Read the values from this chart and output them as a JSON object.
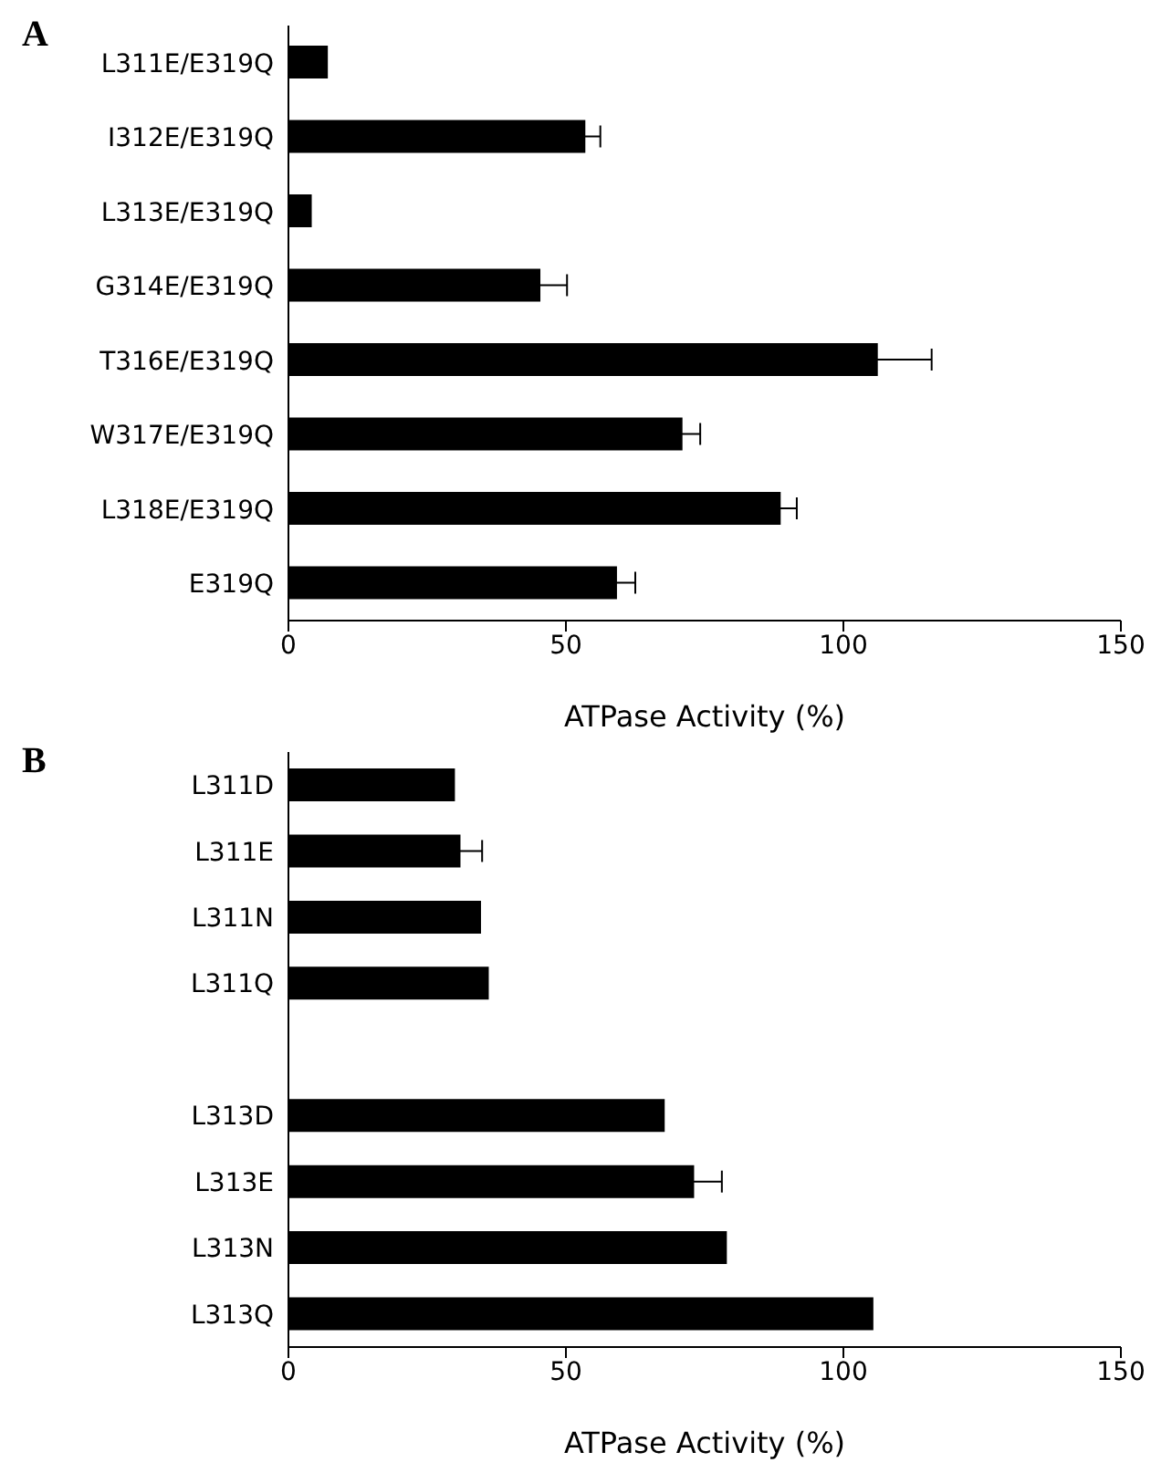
{
  "chart_data": [
    {
      "type": "bar",
      "title": "A",
      "orientation": "horizontal",
      "categories": [
        "L311E/E319Q",
        "I312E/E319Q",
        "L313E/E319Q",
        "G314E/E319Q",
        "T316E/E319Q",
        "W317E/E319Q",
        "L318E/E319Q",
        "E319Q"
      ],
      "values": [
        7.1,
        53.5,
        4.2,
        45.4,
        106.2,
        71.0,
        88.7,
        59.2
      ],
      "errors": [
        null,
        2.7,
        null,
        4.8,
        9.7,
        3.2,
        2.9,
        3.3
      ],
      "color": "#000000",
      "xlabel": "ATPase Activity (%)",
      "xlim": [
        0,
        150
      ],
      "xticks": [
        0,
        50,
        100,
        150
      ],
      "grid": false,
      "legend": false
    },
    {
      "type": "bar",
      "title": "B",
      "orientation": "horizontal",
      "categories": [
        "L311D",
        "L311E",
        "L311N",
        "L311Q",
        null,
        "L313D",
        "L313E",
        "L313N",
        "L313Q"
      ],
      "values": [
        30.0,
        31.0,
        34.7,
        36.1,
        null,
        67.8,
        73.1,
        79.0,
        105.4
      ],
      "errors": [
        null,
        3.9,
        null,
        null,
        null,
        null,
        5.0,
        null,
        null
      ],
      "color": "#000000",
      "xlabel": "ATPase Activity (%)",
      "xlim": [
        0,
        150
      ],
      "xticks": [
        0,
        50,
        100,
        150
      ],
      "grid": false,
      "legend": false
    }
  ]
}
